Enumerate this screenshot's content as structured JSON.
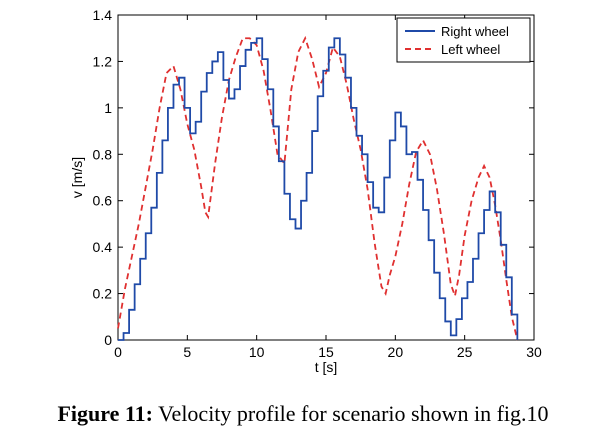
{
  "chart_data": {
    "type": "line",
    "title": "",
    "xlabel": "t [s]",
    "ylabel": "v [m/s]",
    "xlim": [
      0,
      30
    ],
    "ylim": [
      0,
      1.4
    ],
    "xticks": [
      "0",
      "5",
      "10",
      "15",
      "20",
      "25",
      "30"
    ],
    "yticks": [
      "0",
      "0.2",
      "0.4",
      "0.6",
      "0.8",
      "1",
      "1.2",
      "1.4"
    ],
    "legend_position": "top-right",
    "grid": false,
    "series": [
      {
        "name": "Right wheel",
        "color": "#1f4aa8",
        "style": "solid-step",
        "x": [
          0.4,
          0.8,
          1.2,
          1.6,
          2.0,
          2.4,
          2.8,
          3.2,
          3.6,
          4.0,
          4.4,
          4.8,
          5.2,
          5.6,
          6.0,
          6.4,
          6.8,
          7.2,
          7.6,
          8.0,
          8.4,
          8.8,
          9.2,
          9.6,
          10.0,
          10.4,
          10.8,
          11.2,
          11.6,
          12.0,
          12.4,
          12.8,
          13.2,
          13.6,
          14.0,
          14.4,
          14.8,
          15.2,
          15.6,
          16.0,
          16.4,
          16.8,
          17.2,
          17.6,
          18.0,
          18.4,
          18.8,
          19.2,
          19.6,
          20.0,
          20.4,
          20.8,
          21.2,
          21.6,
          22.0,
          22.4,
          22.8,
          23.2,
          23.6,
          24.0,
          24.4,
          24.8,
          25.2,
          25.6,
          26.0,
          26.4,
          26.8,
          27.2,
          27.6,
          28.0,
          28.4,
          28.8
        ],
        "y": [
          0.03,
          0.13,
          0.24,
          0.35,
          0.46,
          0.57,
          0.72,
          0.86,
          1.0,
          1.1,
          1.13,
          1.0,
          0.89,
          0.94,
          1.07,
          1.15,
          1.2,
          1.24,
          1.12,
          1.04,
          1.08,
          1.18,
          1.25,
          1.28,
          1.3,
          1.21,
          1.08,
          0.92,
          0.77,
          0.63,
          0.52,
          0.48,
          0.6,
          0.72,
          0.9,
          1.05,
          1.16,
          1.26,
          1.3,
          1.23,
          1.13,
          1.0,
          0.88,
          0.8,
          0.68,
          0.57,
          0.55,
          0.7,
          0.86,
          0.98,
          0.92,
          0.8,
          0.81,
          0.69,
          0.56,
          0.43,
          0.29,
          0.18,
          0.08,
          0.02,
          0.09,
          0.18,
          0.25,
          0.35,
          0.46,
          0.56,
          0.64,
          0.55,
          0.41,
          0.27,
          0.11,
          0.0
        ]
      },
      {
        "name": "Left wheel",
        "color": "#e03030",
        "style": "dashed",
        "x": [
          0.0,
          0.5,
          1.0,
          1.5,
          2.0,
          2.5,
          3.0,
          3.5,
          4.0,
          4.5,
          5.0,
          5.5,
          6.0,
          6.3,
          6.5,
          7.0,
          7.5,
          8.0,
          8.5,
          9.0,
          9.5,
          10.0,
          10.5,
          11.0,
          11.5,
          12.0,
          12.5,
          13.0,
          13.5,
          14.0,
          14.5,
          15.0,
          15.5,
          16.0,
          16.5,
          17.0,
          17.5,
          18.0,
          18.5,
          19.0,
          19.3,
          19.6,
          20.0,
          20.5,
          21.0,
          21.5,
          22.0,
          22.5,
          23.0,
          23.5,
          24.0,
          24.3,
          24.6,
          25.0,
          25.5,
          26.0,
          26.4,
          26.8,
          27.2,
          27.6,
          28.0,
          28.4,
          28.8
        ],
        "y": [
          0.05,
          0.22,
          0.36,
          0.5,
          0.66,
          0.82,
          1.0,
          1.15,
          1.18,
          1.08,
          0.93,
          0.82,
          0.66,
          0.55,
          0.53,
          0.76,
          0.96,
          1.12,
          1.22,
          1.3,
          1.3,
          1.27,
          1.16,
          0.99,
          0.8,
          0.76,
          1.08,
          1.24,
          1.3,
          1.21,
          1.09,
          1.15,
          1.26,
          1.22,
          1.1,
          0.95,
          0.82,
          0.65,
          0.42,
          0.23,
          0.2,
          0.28,
          0.36,
          0.5,
          0.67,
          0.81,
          0.86,
          0.8,
          0.65,
          0.46,
          0.24,
          0.19,
          0.28,
          0.45,
          0.6,
          0.7,
          0.75,
          0.7,
          0.58,
          0.43,
          0.26,
          0.1,
          0.0
        ]
      }
    ]
  },
  "caption": {
    "label": "Figure 11:",
    "text": " Velocity profile for scenario shown in fig.10"
  }
}
